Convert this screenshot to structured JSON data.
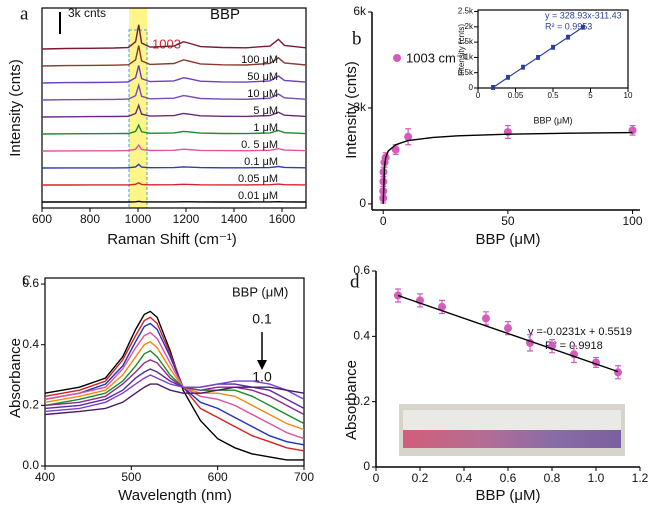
{
  "chart_data": [
    {
      "type": "line",
      "panel_label": "a",
      "xlabel": "Raman Shift (cm⁻¹)",
      "ylabel": "Intensity (cnts)",
      "annotations": [
        "3k cnts",
        "1003",
        "BBP"
      ],
      "xlim": [
        600,
        1700
      ],
      "xticks": [
        600,
        800,
        1000,
        1200,
        1400,
        1600
      ],
      "x": [
        600,
        700,
        800,
        900,
        960,
        990,
        1003,
        1015,
        1050,
        1150,
        1190,
        1210,
        1260,
        1350,
        1450,
        1550,
        1585,
        1610,
        1700
      ],
      "series": [
        {
          "name": null,
          "color": "#000000",
          "values": [
            0,
            2,
            3,
            4,
            6,
            30,
            100,
            25,
            8,
            12,
            30,
            25,
            10,
            6,
            5,
            12,
            40,
            15,
            5
          ]
        },
        {
          "name": "0.01 μM",
          "color": "#d6242c",
          "values": [
            0,
            6,
            9,
            12,
            18,
            90,
            300,
            75,
            24,
            36,
            90,
            75,
            30,
            18,
            15,
            36,
            120,
            45,
            15
          ]
        },
        {
          "name": "0.05 μM",
          "color": "#2a3fb0",
          "values": [
            0,
            10,
            15,
            20,
            30,
            150,
            500,
            125,
            40,
            60,
            150,
            125,
            50,
            30,
            25,
            60,
            200,
            75,
            25
          ]
        },
        {
          "name": "0.1 μM",
          "color": "#e0559e",
          "values": [
            0,
            16,
            24,
            32,
            48,
            240,
            800,
            200,
            64,
            96,
            240,
            200,
            80,
            48,
            40,
            96,
            320,
            120,
            40
          ]
        },
        {
          "name": "0. 5 μM",
          "color": "#1e8a2a",
          "values": [
            0,
            24,
            36,
            48,
            72,
            360,
            1200,
            300,
            96,
            144,
            360,
            300,
            120,
            72,
            60,
            144,
            480,
            180,
            60
          ]
        },
        {
          "name": "1 μM",
          "color": "#6a2a7a",
          "values": [
            0,
            32,
            48,
            64,
            96,
            480,
            1600,
            400,
            128,
            192,
            480,
            400,
            160,
            96,
            80,
            192,
            640,
            240,
            80
          ]
        },
        {
          "name": "5 μM",
          "color": "#7a4bb8",
          "values": [
            0,
            40,
            60,
            80,
            120,
            600,
            2000,
            500,
            160,
            240,
            600,
            500,
            200,
            120,
            100,
            240,
            800,
            300,
            100
          ]
        },
        {
          "name": "10 μM",
          "color": "#6a40c0",
          "values": [
            0,
            48,
            72,
            96,
            144,
            720,
            2400,
            600,
            192,
            288,
            720,
            600,
            240,
            144,
            120,
            288,
            960,
            360,
            120
          ]
        },
        {
          "name": "50 μM",
          "color": "#8a3a30",
          "values": [
            0,
            56,
            84,
            112,
            168,
            840,
            2800,
            700,
            224,
            336,
            840,
            700,
            280,
            168,
            140,
            336,
            1120,
            420,
            140
          ]
        },
        {
          "name": "100 μM",
          "color": "#7a1a30",
          "values": [
            0,
            66,
            99,
            132,
            198,
            990,
            3300,
            825,
            264,
            396,
            990,
            825,
            330,
            198,
            165,
            396,
            1320,
            495,
            165
          ]
        }
      ]
    },
    {
      "type": "scatter",
      "panel_label": "b",
      "xlabel": "BBP (μM)",
      "ylabel": "Intensity (cnts)",
      "xlim": [
        -4.5,
        103
      ],
      "ylim": [
        -190,
        6000
      ],
      "xticks": [
        0,
        50,
        100
      ],
      "yticks": [
        0,
        {
          "value": 3000,
          "label": "3k"
        },
        {
          "value": 6000,
          "label": "6k"
        }
      ],
      "series": [
        {
          "name": "1003 cm⁻¹",
          "color": "#d65bbd",
          "x": [
            0,
            0.01,
            0.05,
            0.1,
            0.5,
            1,
            5,
            10,
            50,
            100
          ],
          "values": [
            180,
            400,
            700,
            1000,
            1300,
            1450,
            1700,
            2100,
            2250,
            2300
          ],
          "errors": [
            150,
            150,
            150,
            150,
            150,
            150,
            150,
            250,
            200,
            150
          ]
        },
        {
          "style": "line",
          "color": "#000000",
          "x": [
            0,
            0.5,
            1,
            2,
            5,
            10,
            20,
            30,
            50,
            75,
            100
          ],
          "values": [
            0,
            1150,
            1450,
            1650,
            1850,
            1980,
            2080,
            2130,
            2180,
            2210,
            2230
          ]
        }
      ]
    },
    {
      "type": "scatter",
      "xlabel": "BBP (μM)",
      "ylabel": "Intensity (cnts)",
      "annotations": [
        "y = 328.93x-311.43",
        "R² = 0.9953"
      ],
      "xlim": [
        0,
        10
      ],
      "ylim": [
        0,
        2550
      ],
      "xticks": [
        0,
        {
          "value": 2.5,
          "label": "0.05"
        },
        {
          "value": 5,
          "label": "0.5"
        },
        {
          "value": 7.5,
          "label": "5"
        },
        10
      ],
      "yticks": [
        0,
        {
          "value": 500,
          "label": "0.5k"
        },
        {
          "value": 1000,
          "label": "1k"
        },
        {
          "value": 1500,
          "label": "1.5k"
        },
        {
          "value": 2000,
          "label": "2k"
        },
        {
          "value": 2500,
          "label": "2.5k"
        }
      ],
      "series": [
        {
          "color": "#2a3f9a",
          "x": [
            1,
            2,
            3,
            4,
            5,
            6,
            7
          ],
          "values": [
            20,
            350,
            680,
            1000,
            1330,
            1660,
            1990
          ],
          "errors": [
            60,
            60,
            60,
            60,
            60,
            60,
            60
          ]
        },
        {
          "style": "line",
          "color": "#2a3f9a",
          "x": [
            1,
            7
          ],
          "values": [
            17,
            1991
          ]
        }
      ]
    },
    {
      "type": "line",
      "panel_label": "c",
      "xlabel": "Wavelength (nm)",
      "ylabel": "Absorbance",
      "annotations": [
        "BBP (μM)",
        "0.1",
        "1.0"
      ],
      "xlim": [
        400,
        700
      ],
      "ylim": [
        0,
        0.62
      ],
      "xticks": [
        400,
        500,
        600,
        700
      ],
      "yticks": [
        {
          "value": 0,
          "label": "0.0"
        },
        0.2,
        0.4,
        0.6
      ],
      "x": [
        400,
        440,
        470,
        490,
        505,
        515,
        522,
        530,
        545,
        560,
        580,
        600,
        620,
        640,
        660,
        680,
        700
      ],
      "series": [
        {
          "color": "#000000",
          "values": [
            0.24,
            0.26,
            0.29,
            0.36,
            0.45,
            0.5,
            0.51,
            0.49,
            0.38,
            0.25,
            0.15,
            0.09,
            0.06,
            0.04,
            0.03,
            0.02,
            0.02
          ]
        },
        {
          "color": "#d62020",
          "values": [
            0.23,
            0.25,
            0.28,
            0.35,
            0.43,
            0.48,
            0.49,
            0.47,
            0.37,
            0.26,
            0.19,
            0.16,
            0.13,
            0.1,
            0.08,
            0.06,
            0.05
          ]
        },
        {
          "color": "#2030c0",
          "values": [
            0.22,
            0.24,
            0.27,
            0.33,
            0.41,
            0.46,
            0.47,
            0.45,
            0.36,
            0.26,
            0.21,
            0.19,
            0.16,
            0.13,
            0.1,
            0.08,
            0.07
          ]
        },
        {
          "color": "#e04fa0",
          "values": [
            0.22,
            0.24,
            0.26,
            0.32,
            0.39,
            0.43,
            0.44,
            0.42,
            0.34,
            0.26,
            0.23,
            0.22,
            0.2,
            0.17,
            0.14,
            0.11,
            0.09
          ]
        },
        {
          "color": "#f08a10",
          "values": [
            0.21,
            0.23,
            0.25,
            0.3,
            0.36,
            0.4,
            0.41,
            0.39,
            0.32,
            0.26,
            0.24,
            0.24,
            0.23,
            0.2,
            0.17,
            0.14,
            0.12
          ]
        },
        {
          "color": "#1e8a2a",
          "values": [
            0.2,
            0.22,
            0.24,
            0.28,
            0.33,
            0.37,
            0.38,
            0.36,
            0.3,
            0.26,
            0.25,
            0.25,
            0.25,
            0.23,
            0.2,
            0.17,
            0.14
          ]
        },
        {
          "color": "#8a2a8a",
          "values": [
            0.2,
            0.21,
            0.23,
            0.27,
            0.31,
            0.34,
            0.35,
            0.34,
            0.29,
            0.26,
            0.25,
            0.26,
            0.26,
            0.25,
            0.23,
            0.2,
            0.17
          ]
        },
        {
          "color": "#5a2aa0",
          "values": [
            0.19,
            0.2,
            0.22,
            0.25,
            0.29,
            0.31,
            0.32,
            0.31,
            0.28,
            0.26,
            0.26,
            0.27,
            0.27,
            0.26,
            0.25,
            0.22,
            0.19
          ]
        },
        {
          "color": "#7a40d0",
          "values": [
            0.18,
            0.19,
            0.21,
            0.24,
            0.27,
            0.29,
            0.3,
            0.29,
            0.27,
            0.26,
            0.26,
            0.27,
            0.28,
            0.28,
            0.27,
            0.25,
            0.22
          ]
        },
        {
          "color": "#4a1a6a",
          "values": [
            0.17,
            0.18,
            0.19,
            0.21,
            0.24,
            0.26,
            0.27,
            0.27,
            0.25,
            0.24,
            0.24,
            0.25,
            0.26,
            0.26,
            0.26,
            0.25,
            0.24
          ]
        }
      ]
    },
    {
      "type": "scatter",
      "panel_label": "d",
      "xlabel": "BBP (μM)",
      "ylabel": "Absorbance",
      "annotations": [
        "y =-0.0231x + 0.5519",
        "R² = 0.9918"
      ],
      "xlim": [
        0,
        1.2
      ],
      "ylim": [
        0,
        0.6
      ],
      "xticks": [
        0,
        0.2,
        0.4,
        0.6,
        0.8,
        {
          "value": 1,
          "label": "1.0"
        },
        1.2
      ],
      "yticks": [
        0,
        0.2,
        0.4,
        0.6
      ],
      "series": [
        {
          "color": "#d65bbd",
          "x": [
            0.1,
            0.2,
            0.3,
            0.5,
            0.6,
            0.7,
            0.8,
            0.9,
            1.0,
            1.1
          ],
          "values": [
            0.525,
            0.51,
            0.49,
            0.455,
            0.425,
            0.38,
            0.37,
            0.345,
            0.32,
            0.29
          ],
          "errors": [
            0.02,
            0.02,
            0.02,
            0.02,
            0.02,
            0.025,
            0.02,
            0.025,
            0.015,
            0.02
          ]
        },
        {
          "style": "line",
          "color": "#000000",
          "x": [
            0.1,
            1.1
          ],
          "values": [
            0.525,
            0.292
          ]
        }
      ]
    }
  ]
}
